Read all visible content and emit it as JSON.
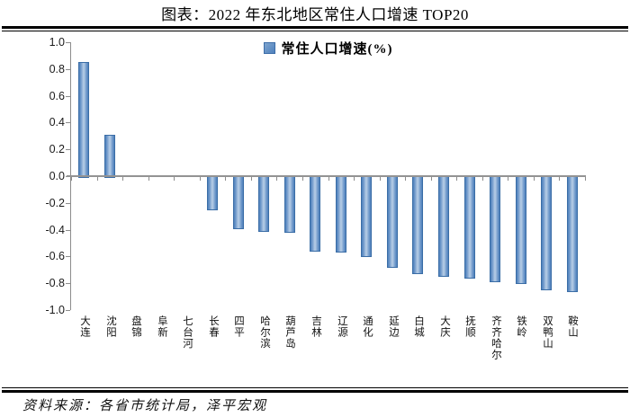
{
  "header": {
    "title": "图表：2022 年东北地区常住人口增速 TOP20"
  },
  "legend": {
    "label": "常住人口增速(%)",
    "swatch_color": "#4f81bd"
  },
  "footer": {
    "source_text": "资料来源：各省市统计局，泽平宏观"
  },
  "colors": {
    "bar_fill": "#4f81bd",
    "bar_fill_light": "#b9cfe7",
    "bar_border": "#3a6da6",
    "axis_line": "#8c8c8c",
    "rule": "#000000"
  },
  "chart_data": {
    "type": "bar",
    "title": "图表：2022 年东北地区常住人口增速 TOP20",
    "series_name": "常住人口增速(%)",
    "categories": [
      "大连",
      "沈阳",
      "盘锦",
      "阜新",
      "七台河",
      "长春",
      "四平",
      "哈尔滨",
      "葫芦岛",
      "吉林",
      "辽源",
      "通化",
      "延边",
      "白城",
      "大庆",
      "抚顺",
      "齐齐哈尔",
      "铁岭",
      "双鸭山",
      "鞍山"
    ],
    "values": [
      0.85,
      0.31,
      0.0,
      0.0,
      0.0,
      -0.24,
      -0.38,
      -0.4,
      -0.41,
      -0.55,
      -0.56,
      -0.59,
      -0.67,
      -0.72,
      -0.74,
      -0.75,
      -0.78,
      -0.79,
      -0.84,
      -0.85
    ],
    "xlabel": "",
    "ylabel": "",
    "ylim": [
      -1.0,
      1.0
    ],
    "ytick_step": 0.2,
    "ytick_labels": [
      "1.0",
      "0.8",
      "0.6",
      "0.4",
      "0.2",
      "0.0",
      "-0.2",
      "-0.4",
      "-0.6",
      "-0.8",
      "-1.0"
    ],
    "grid": false,
    "legend_position": "top-center"
  }
}
